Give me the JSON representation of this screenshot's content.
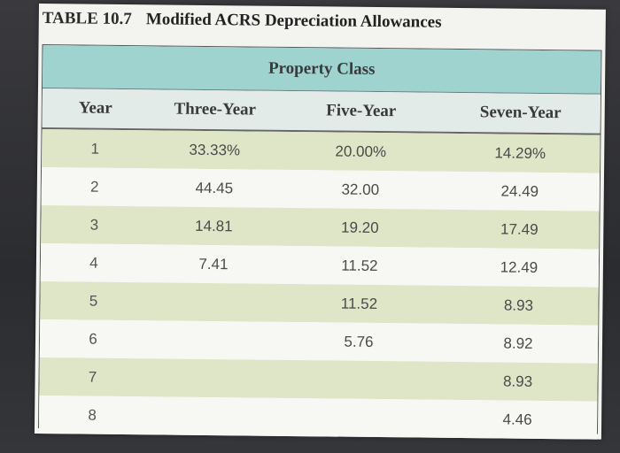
{
  "title": {
    "number": "TABLE 10.7",
    "text": "Modified ACRS Depreciation Allowances"
  },
  "table": {
    "group_header": "Property Class",
    "columns": [
      "Year",
      "Three-Year",
      "Five-Year",
      "Seven-Year"
    ],
    "rows": [
      [
        "1",
        "33.33%",
        "20.00%",
        "14.29%"
      ],
      [
        "2",
        "44.45",
        "32.00",
        "24.49"
      ],
      [
        "3",
        "14.81",
        "19.20",
        "17.49"
      ],
      [
        "4",
        "7.41",
        "11.52",
        "12.49"
      ],
      [
        "5",
        "",
        "11.52",
        "8.93"
      ],
      [
        "6",
        "",
        "5.76",
        "8.92"
      ],
      [
        "7",
        "",
        "",
        "8.93"
      ],
      [
        "8",
        "",
        "",
        "4.46"
      ]
    ]
  }
}
